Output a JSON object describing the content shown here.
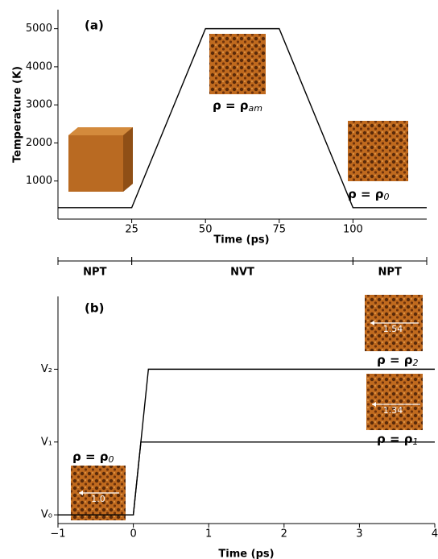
{
  "chart_data": [
    {
      "type": "line",
      "panel_label": "(a)",
      "xlabel": "Time (ps)",
      "ylabel": "Temperature (K)",
      "xlim": [
        0,
        125
      ],
      "ylim": [
        0,
        5500
      ],
      "xticks": [
        25,
        50,
        75,
        100
      ],
      "yticks": [
        1000,
        2000,
        3000,
        4000,
        5000
      ],
      "color": "#000000",
      "x": [
        0,
        25,
        50,
        75,
        100,
        125
      ],
      "values": [
        300,
        300,
        5000,
        5000,
        300,
        300
      ],
      "annotations": [
        {
          "text": "ρ = ρ",
          "sub": "am"
        },
        {
          "text": "ρ = ρ",
          "sub": "0"
        }
      ],
      "phases": [
        {
          "label": "NPT",
          "start": 0,
          "end": 25
        },
        {
          "label": "NVT",
          "start": 25,
          "end": 100
        },
        {
          "label": "NPT",
          "start": 100,
          "end": 125
        }
      ]
    },
    {
      "type": "line",
      "panel_label": "(b)",
      "xlabel": "Time (ps)",
      "xlim": [
        -1,
        4
      ],
      "ylim": [
        -0.12,
        3
      ],
      "xticks": [
        {
          "value": -1,
          "label": "−1"
        },
        0,
        1,
        2,
        3,
        4
      ],
      "yticks": [
        {
          "value": 0,
          "label": "V₀"
        },
        {
          "value": 1,
          "label": "V₁"
        },
        {
          "value": 2,
          "label": "V₂"
        }
      ],
      "series": [
        {
          "color": "#000000",
          "x": [
            -1,
            0,
            0.2,
            4
          ],
          "values": [
            0,
            0,
            2,
            2
          ]
        },
        {
          "color": "#000000",
          "x": [
            -1,
            0,
            0.1,
            4
          ],
          "values": [
            0,
            0,
            1,
            1
          ]
        }
      ],
      "annotations": [
        {
          "text": "ρ = ρ",
          "sub": "0"
        },
        {
          "text": "ρ = ρ",
          "sub": "2"
        },
        {
          "text": "ρ = ρ",
          "sub": "1"
        }
      ],
      "scale_labels": [
        "1.0",
        "1.54",
        "1.34"
      ]
    }
  ]
}
